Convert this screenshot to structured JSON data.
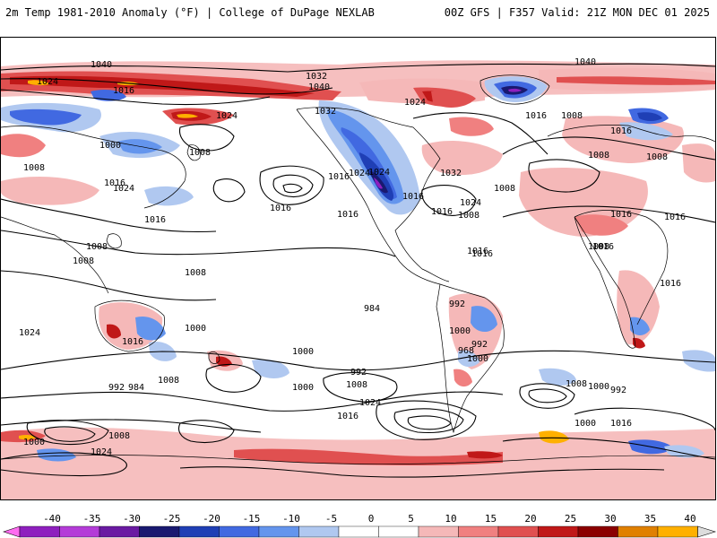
{
  "header": {
    "title": "2m Temp 1981-2010 Anomaly (°F) | College of DuPage NEXLAB",
    "run_info": "00Z GFS | F357 Valid: 21Z MON DEC 01 2025"
  },
  "map": {
    "projection": "global (equidistant cylindrical, centered on Pacific)",
    "isobar_labels": [
      "1040",
      "1024",
      "1016",
      "1032",
      "1040",
      "1032",
      "1024",
      "1032",
      "1040",
      "1024",
      "1016",
      "1008",
      "1000",
      "1008",
      "1016",
      "1016",
      "1024",
      "1016",
      "1008",
      "1024",
      "1016",
      "1016",
      "1024",
      "1016",
      "1016",
      "1008",
      "1024",
      "1016",
      "1016",
      "1008",
      "1008",
      "1016",
      "1008",
      "1016",
      "1008",
      "1016",
      "1008",
      "1016",
      "1008",
      "1016",
      "1008",
      "1024",
      "1016",
      "1000",
      "1000",
      "984",
      "992",
      "1000",
      "992",
      "1008",
      "1000",
      "1016",
      "1024",
      "992",
      "968",
      "992",
      "984",
      "1008",
      "1000",
      "1008",
      "1000",
      "992",
      "1000",
      "1016",
      "1000",
      "1008",
      "1024"
    ]
  },
  "colorbar": {
    "labels": [
      "-40",
      "-35",
      "-30",
      "-25",
      "-20",
      "-15",
      "-10",
      "-5",
      "0",
      "5",
      "10",
      "15",
      "20",
      "25",
      "30",
      "35",
      "40"
    ],
    "colors": [
      "#8e1fbe",
      "#b43cd8",
      "#6a1aa2",
      "#191970",
      "#1f3fb5",
      "#4169e1",
      "#6495ed",
      "#b0c8f0",
      "#ffffff",
      "#ffffff",
      "#f5b8b8",
      "#f08080",
      "#e05050",
      "#c01818",
      "#8b0000",
      "#e08000",
      "#ffb000"
    ]
  }
}
